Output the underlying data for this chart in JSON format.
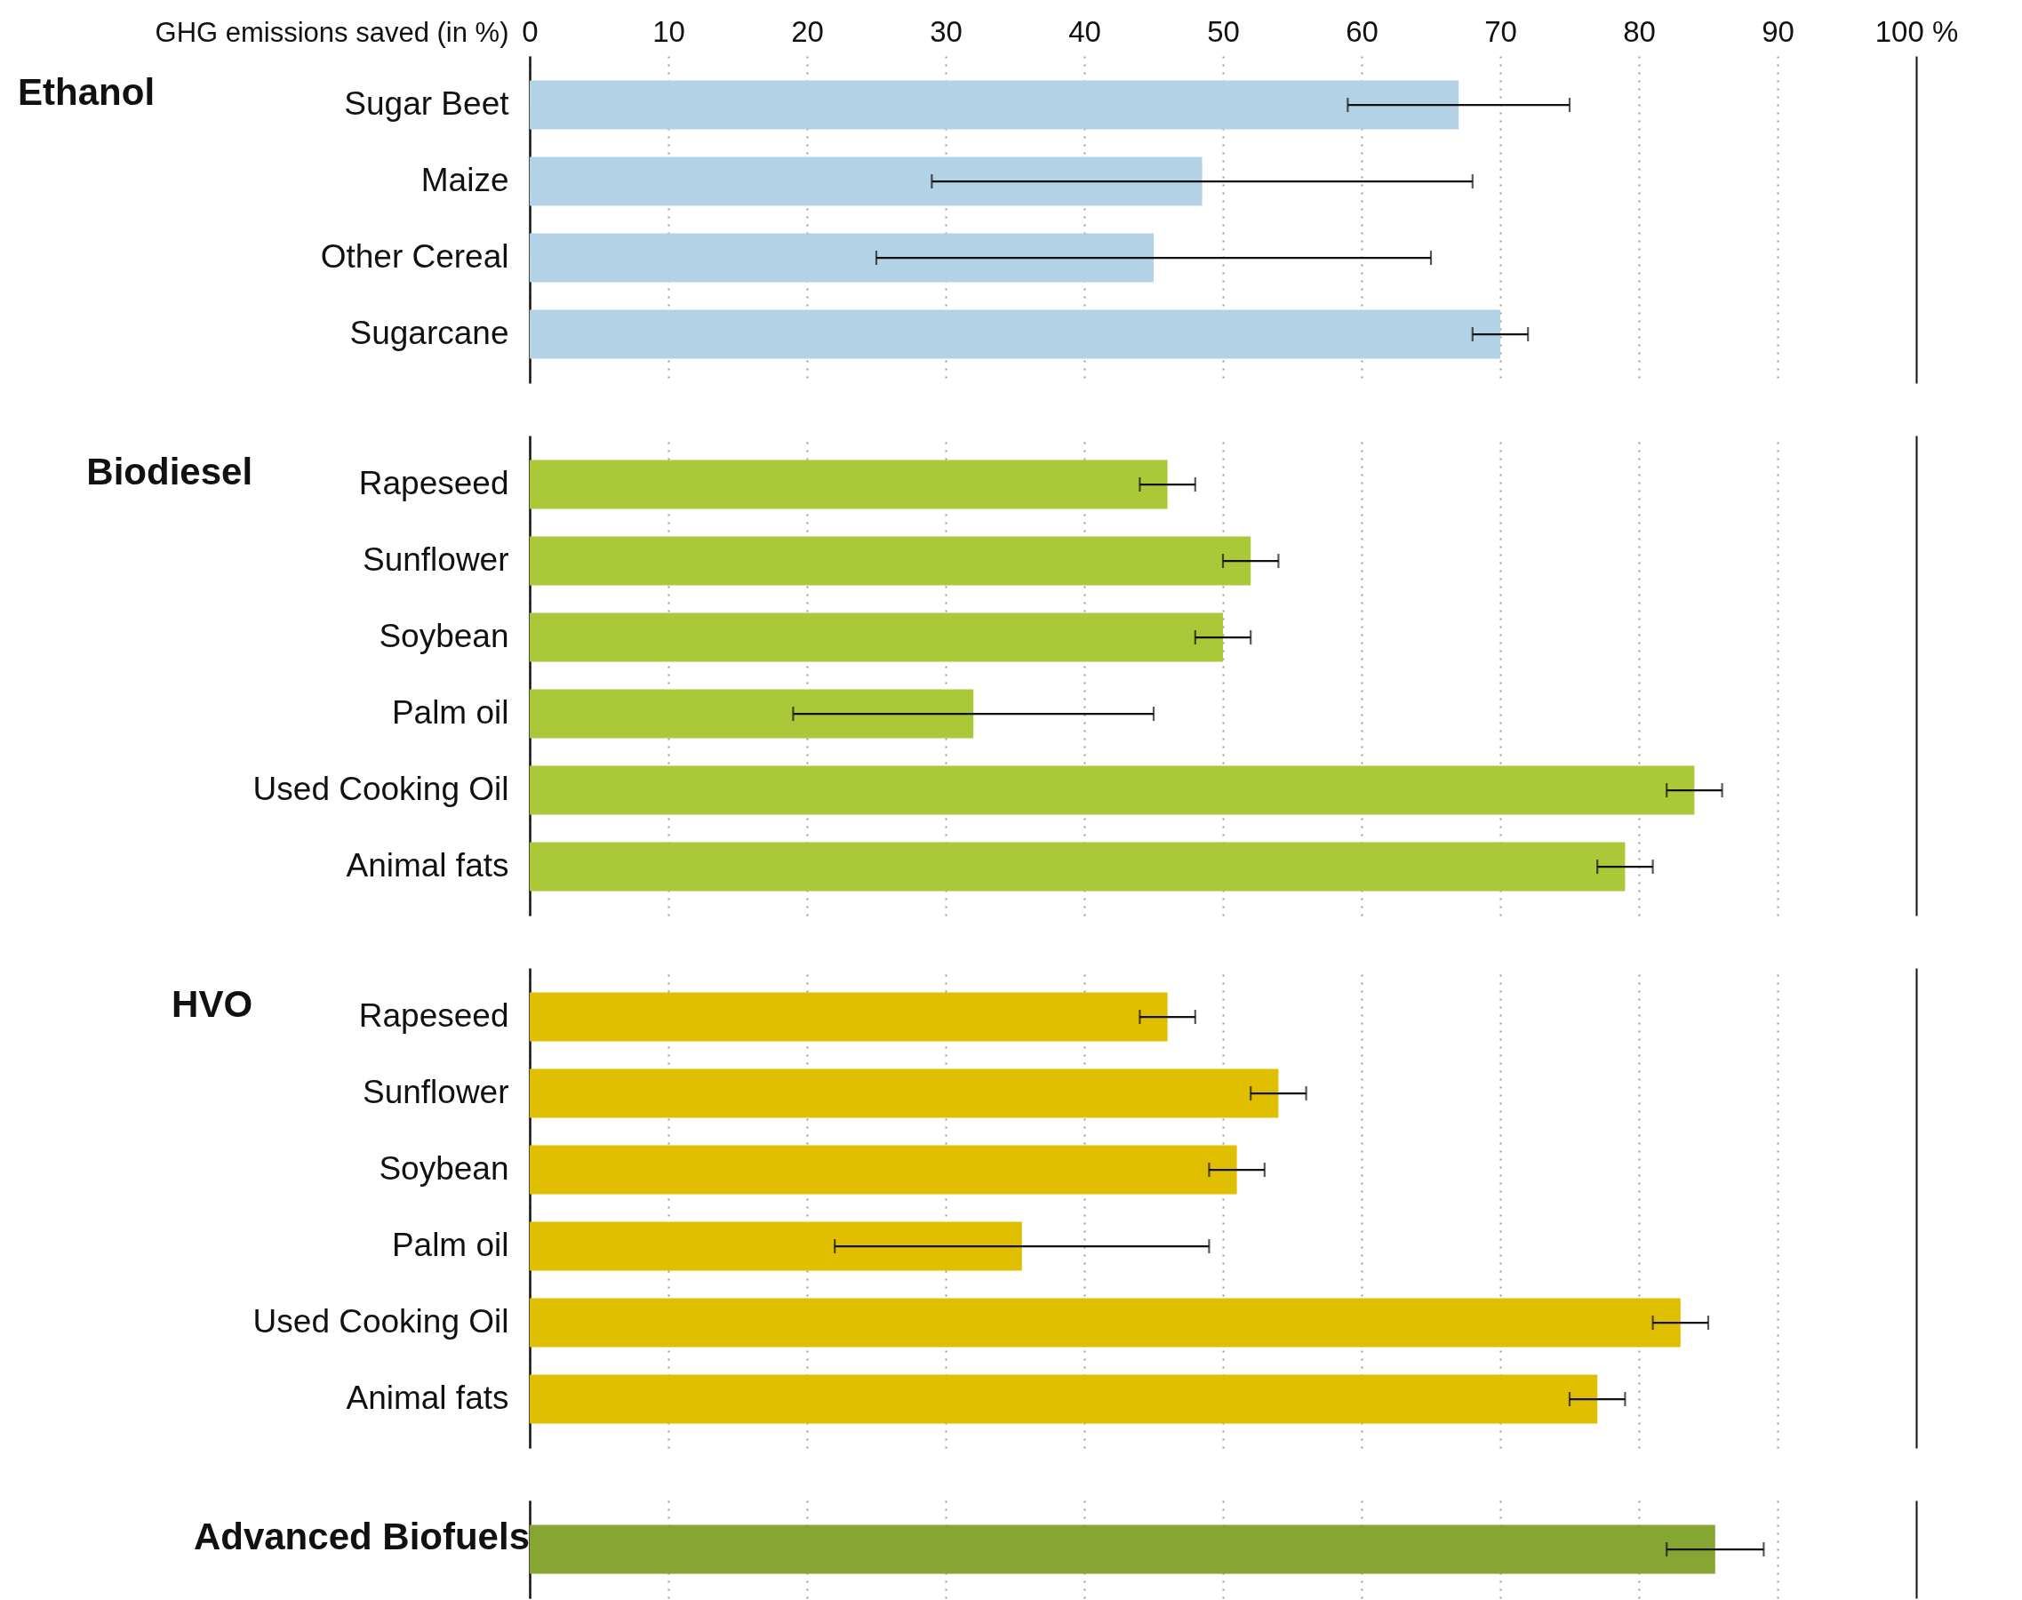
{
  "chart_data": [
    {
      "type": "bar",
      "orientation": "horizontal",
      "title": "Ethanol",
      "xlabel": "GHG emissions saved (in %)",
      "categories": [
        "Sugar Beet",
        "Maize",
        "Other Cereal",
        "Sugarcane"
      ],
      "values": [
        67,
        48.5,
        45,
        70
      ],
      "errors": [
        [
          59,
          75
        ],
        [
          29,
          68
        ],
        [
          25,
          65
        ],
        [
          68,
          72
        ]
      ],
      "color": "#b3d2e5",
      "xlim": [
        0,
        100
      ],
      "xticks": [
        0,
        10,
        20,
        30,
        40,
        50,
        60,
        70,
        80,
        90,
        {
          "value": 100,
          "label": "100 %"
        }
      ],
      "grid": "x"
    },
    {
      "type": "bar",
      "orientation": "horizontal",
      "title": "Biodiesel",
      "categories": [
        "Rapeseed",
        "Sunflower",
        "Soybean",
        "Palm oil",
        "Used Cooking Oil",
        "Animal fats"
      ],
      "values": [
        46,
        52,
        50,
        32,
        84,
        79
      ],
      "errors": [
        [
          44,
          48
        ],
        [
          50,
          54
        ],
        [
          48,
          52
        ],
        [
          19,
          45
        ],
        [
          82,
          86
        ],
        [
          77,
          81
        ]
      ],
      "color": "#aac838",
      "xlim": [
        0,
        100
      ],
      "xticks": [
        0,
        10,
        20,
        30,
        40,
        50,
        60,
        70,
        80,
        90,
        100
      ],
      "grid": "x",
      "tick_labels": "y"
    },
    {
      "type": "bar",
      "orientation": "horizontal",
      "title": "HVO",
      "categories": [
        "Rapeseed",
        "Sunflower",
        "Soybean",
        "Palm oil",
        "Used Cooking Oil",
        "Animal fats"
      ],
      "values": [
        46,
        54,
        51,
        35.5,
        83,
        77
      ],
      "errors": [
        [
          44,
          48
        ],
        [
          52,
          56
        ],
        [
          49,
          53
        ],
        [
          22,
          49
        ],
        [
          81,
          85
        ],
        [
          75,
          79
        ]
      ],
      "color": "#e0be00",
      "xlim": [
        0,
        100
      ],
      "xticks": [
        0,
        10,
        20,
        30,
        40,
        50,
        60,
        70,
        80,
        90,
        100
      ],
      "grid": "x",
      "tick_labels": "y"
    },
    {
      "type": "bar",
      "orientation": "horizontal",
      "title": "Advanced Biofuels",
      "categories": [
        null
      ],
      "values": [
        85.5
      ],
      "errors": [
        [
          82,
          89
        ]
      ],
      "color": "#87a532",
      "xlim": [
        0,
        100
      ],
      "xticks": [
        0,
        10,
        20,
        30,
        40,
        50,
        60,
        70,
        80,
        90,
        100
      ],
      "grid": "x",
      "tick_labels": false
    }
  ]
}
